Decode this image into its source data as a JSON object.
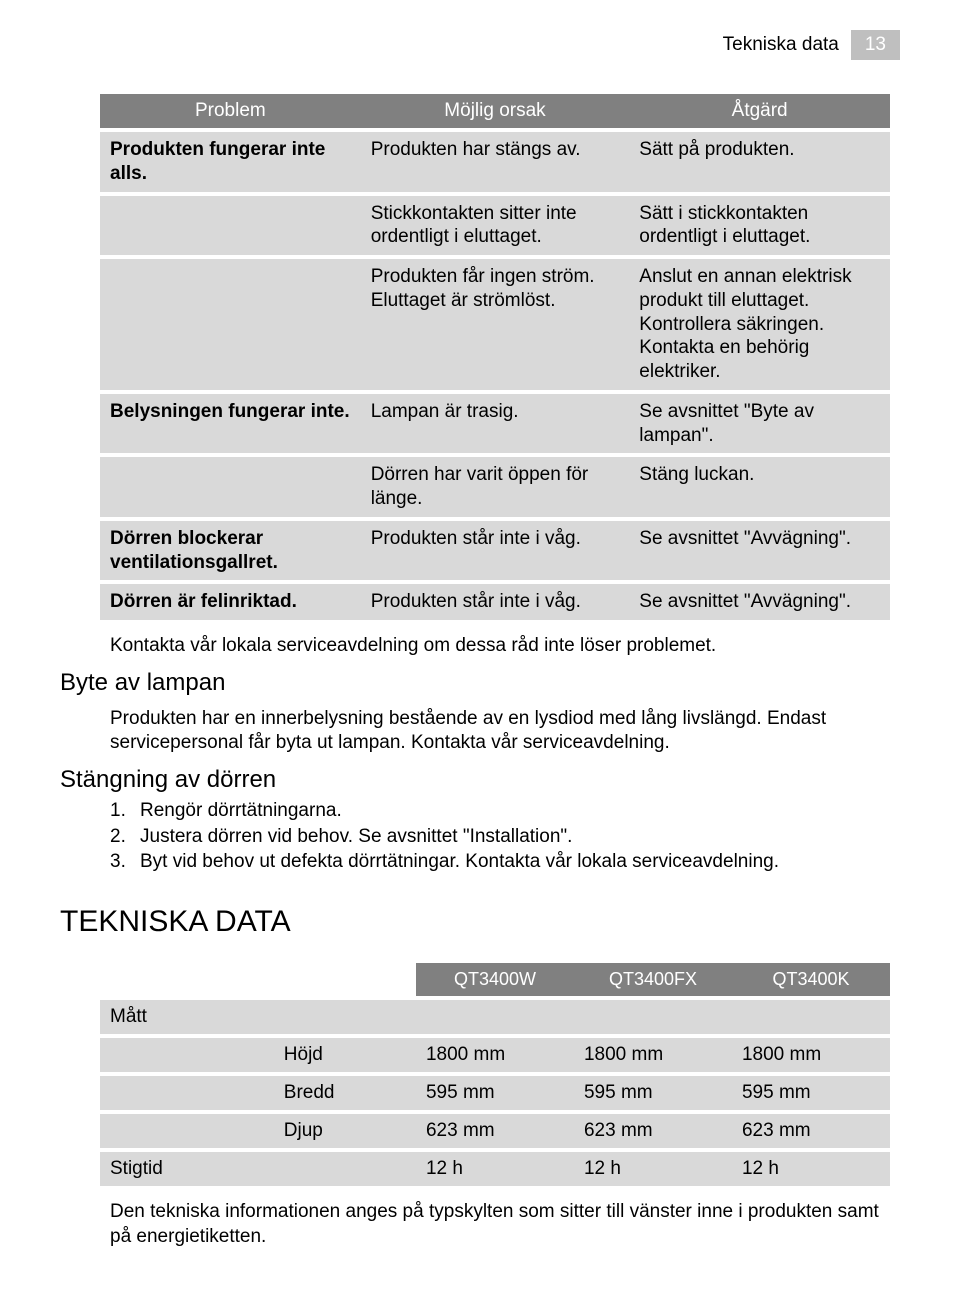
{
  "header": {
    "title": "Tekniska data",
    "page": "13"
  },
  "troubleshoot": {
    "headers": {
      "problem": "Problem",
      "cause": "Möjlig orsak",
      "action": "Åtgärd"
    },
    "rows": [
      {
        "problem": "Produkten fungerar inte alls.",
        "cause": "Produkten har stängs av.",
        "action": "Sätt på produkten."
      },
      {
        "problem": "",
        "cause": "Stickkontakten sitter inte ordentligt i eluttaget.",
        "action": "Sätt i stickkontakten ordentligt i eluttaget."
      },
      {
        "problem": "",
        "cause": "Produkten får ingen ström. Eluttaget är strömlöst.",
        "action": "Anslut en annan elektrisk produkt till eluttaget. Kontrollera säkringen. Kontakta en behörig elektriker."
      },
      {
        "problem": "Belysningen fungerar inte.",
        "cause": "Lampan är trasig.",
        "action": "Se avsnittet \"Byte av lampan\"."
      },
      {
        "problem": "",
        "cause": "Dörren har varit öppen för länge.",
        "action": "Stäng luckan."
      },
      {
        "problem": "Dörren blockerar ventilationsgallret.",
        "cause": "Produkten står inte i våg.",
        "action": "Se avsnittet \"Avvägning\"."
      },
      {
        "problem": "Dörren är felinriktad.",
        "cause": "Produkten står inte i våg.",
        "action": "Se avsnittet \"Avvägning\"."
      }
    ],
    "footer_note": "Kontakta vår lokala serviceavdelning om dessa råd inte löser problemet."
  },
  "lamp": {
    "heading": "Byte av lampan",
    "text": "Produkten har en innerbelysning bestående av en lysdiod med lång livslängd. Endast servicepersonal får byta ut lampan. Kontakta vår serviceavdelning."
  },
  "door": {
    "heading": "Stängning av dörren",
    "items": [
      "Rengör dörrtätningarna.",
      "Justera dörren vid behov. Se avsnittet \"Installation\".",
      "Byt vid behov ut defekta dörrtätningar. Kontakta vår lokala serviceavdelning."
    ]
  },
  "techdata": {
    "heading": "TEKNISKA DATA",
    "models": [
      "QT3400W",
      "QT3400FX",
      "QT3400K"
    ],
    "section_label": "Mått",
    "rows": [
      {
        "dim": "Höjd",
        "vals": [
          "1800 mm",
          "1800 mm",
          "1800 mm"
        ]
      },
      {
        "dim": "Bredd",
        "vals": [
          "595 mm",
          "595 mm",
          "595 mm"
        ]
      },
      {
        "dim": "Djup",
        "vals": [
          "623 mm",
          "623 mm",
          "623 mm"
        ]
      }
    ],
    "rise": {
      "label": "Stigtid",
      "vals": [
        "12 h",
        "12 h",
        "12 h"
      ]
    },
    "footnote": "Den tekniska informationen anges på typskylten som sitter till vänster inne i produkten samt på energietiketten."
  }
}
